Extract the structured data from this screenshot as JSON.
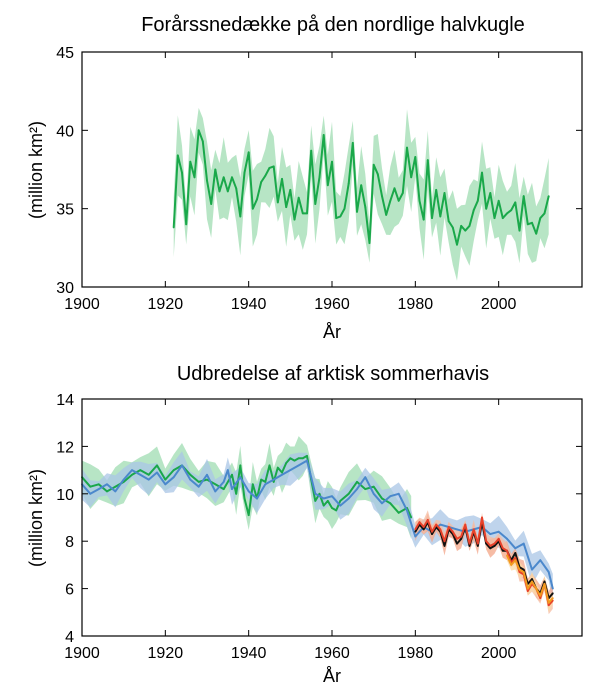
{
  "chart_data": [
    {
      "type": "line",
      "title": "Forårssnedække på den nordlige halvkugle",
      "xlabel": "År",
      "ylabel": "(million km²)",
      "xlim": [
        1900,
        2020
      ],
      "ylim": [
        30,
        45
      ],
      "xticks": [
        1900,
        1920,
        1940,
        1960,
        1980,
        2000
      ],
      "yticks": [
        30,
        35,
        40,
        45
      ],
      "grid": false,
      "series": [
        {
          "color": "#1aa84a",
          "band_color": "#9fdcb2",
          "x": [
            1922,
            1923,
            1924,
            1925,
            1926,
            1927,
            1928,
            1929,
            1930,
            1931,
            1932,
            1933,
            1934,
            1935,
            1936,
            1937,
            1938,
            1939,
            1940,
            1941,
            1942,
            1943,
            1944,
            1945,
            1946,
            1947,
            1948,
            1949,
            1950,
            1951,
            1952,
            1953,
            1954,
            1955,
            1956,
            1957,
            1958,
            1959,
            1960,
            1961,
            1962,
            1963,
            1964,
            1965,
            1966,
            1967,
            1968,
            1969,
            1970,
            1971,
            1972,
            1973,
            1974,
            1975,
            1976,
            1977,
            1978,
            1979,
            1980,
            1981,
            1982,
            1983,
            1984,
            1985,
            1986,
            1987,
            1988,
            1989,
            1990,
            1991,
            1992,
            1993,
            1994,
            1995,
            1996,
            1997,
            1998,
            1999,
            2000,
            2001,
            2002,
            2003,
            2004,
            2005,
            2006,
            2007,
            2008,
            2009,
            2010,
            2011,
            2012
          ],
          "y": [
            33.8,
            38.4,
            37.3,
            34.0,
            38.0,
            37.0,
            40.0,
            39.3,
            36.8,
            35.3,
            37.5,
            36.1,
            37.0,
            36.1,
            37.0,
            36.3,
            34.5,
            37.3,
            38.6,
            35.0,
            35.6,
            36.7,
            37.1,
            37.6,
            37.7,
            35.4,
            36.9,
            35.1,
            36.2,
            34.3,
            35.7,
            34.7,
            34.7,
            38.7,
            35.3,
            37.0,
            39.7,
            36.5,
            38.0,
            34.4,
            34.5,
            35.0,
            36.6,
            39.2,
            34.8,
            36.5,
            35.1,
            32.8,
            37.8,
            37.2,
            35.8,
            34.6,
            35.5,
            36.3,
            35.5,
            36.0,
            38.9,
            37.0,
            38.3,
            35.5,
            34.3,
            38.1,
            34.4,
            36.2,
            34.5,
            36.0,
            34.2,
            33.8,
            32.7,
            33.9,
            33.6,
            33.9,
            34.9,
            35.5,
            37.3,
            35.0,
            36.0,
            34.4,
            35.5,
            34.4,
            34.7,
            34.9,
            35.4,
            33.6,
            35.8,
            34.0,
            34.1,
            33.4,
            34.4,
            34.7,
            35.8
          ]
        }
      ]
    },
    {
      "type": "line",
      "title": "Udbredelse af arktisk sommerhavis",
      "xlabel": "År",
      "ylabel": "(million km²)",
      "xlim": [
        1900,
        2020
      ],
      "ylim": [
        4,
        14
      ],
      "xticks": [
        1900,
        1920,
        1940,
        1960,
        1980,
        2000
      ],
      "yticks": [
        4,
        6,
        8,
        10,
        12,
        14
      ],
      "grid": false,
      "series": [
        {
          "color": "#1aa84a",
          "band_color": "#9fdcb2",
          "x": [
            1900,
            1902,
            1904,
            1906,
            1908,
            1910,
            1912,
            1914,
            1916,
            1918,
            1920,
            1922,
            1924,
            1926,
            1928,
            1930,
            1932,
            1934,
            1936,
            1937,
            1938,
            1939,
            1940,
            1941,
            1942,
            1943,
            1944,
            1945,
            1946,
            1947,
            1948,
            1949,
            1950,
            1951,
            1952,
            1953,
            1954,
            1955,
            1956,
            1957,
            1958,
            1959,
            1960,
            1961,
            1962,
            1964,
            1966,
            1968,
            1970,
            1972,
            1974,
            1976,
            1978,
            1979
          ],
          "y": [
            10.7,
            10.3,
            10.4,
            10.1,
            10.3,
            10.5,
            10.8,
            11.0,
            10.8,
            11.2,
            10.6,
            11.0,
            11.2,
            10.8,
            10.5,
            10.6,
            10.4,
            10.2,
            10.8,
            10.0,
            11.2,
            9.8,
            9.1,
            10.4,
            9.8,
            10.6,
            10.5,
            11.2,
            10.5,
            11.1,
            10.9,
            11.3,
            11.5,
            11.4,
            11.5,
            11.5,
            11.6,
            10.6,
            9.7,
            10.0,
            9.5,
            9.7,
            9.4,
            9.3,
            9.7,
            10.0,
            10.5,
            10.2,
            10.3,
            9.8,
            9.6,
            9.2,
            9.4,
            9.0
          ]
        },
        {
          "color": "#4b88cc",
          "band_color": "#a9c6e6",
          "x": [
            1900,
            1902,
            1904,
            1906,
            1908,
            1910,
            1912,
            1914,
            1916,
            1918,
            1920,
            1922,
            1924,
            1926,
            1928,
            1930,
            1932,
            1934,
            1935,
            1936,
            1938,
            1940,
            1942,
            1944,
            1946,
            1948,
            1950,
            1952,
            1954,
            1955,
            1956,
            1958,
            1960,
            1962,
            1964,
            1966,
            1968,
            1970,
            1972,
            1974,
            1976,
            1978,
            1980,
            1982,
            1984,
            1986,
            1988,
            1990,
            1992,
            1994,
            1996,
            1998,
            2000,
            2002,
            2004,
            2006,
            2008,
            2010,
            2012,
            2013
          ],
          "y": [
            10.4,
            10.0,
            10.2,
            10.4,
            10.1,
            10.6,
            11.0,
            10.8,
            10.6,
            10.9,
            10.4,
            10.7,
            11.2,
            10.6,
            10.3,
            10.8,
            10.1,
            10.5,
            11.0,
            10.2,
            10.7,
            10.1,
            9.8,
            10.4,
            10.6,
            10.8,
            11.0,
            11.2,
            11.4,
            10.7,
            10.0,
            9.8,
            9.9,
            9.5,
            9.8,
            10.2,
            10.7,
            10.0,
            9.6,
            9.9,
            10.0,
            9.3,
            8.2,
            8.6,
            8.4,
            8.7,
            8.6,
            8.5,
            8.4,
            8.5,
            8.6,
            8.3,
            8.4,
            8.1,
            7.7,
            7.9,
            6.8,
            7.2,
            6.7,
            6.0
          ]
        },
        {
          "color": "#111111",
          "band_color": "#f3a58a",
          "x": [
            1980,
            1981,
            1982,
            1983,
            1984,
            1985,
            1986,
            1987,
            1988,
            1989,
            1990,
            1991,
            1992,
            1993,
            1994,
            1995,
            1996,
            1997,
            1998,
            1999,
            2000,
            2001,
            2002,
            2003,
            2004,
            2005,
            2006,
            2007,
            2008,
            2009,
            2010,
            2011,
            2012,
            2013
          ],
          "y": [
            8.4,
            8.7,
            8.5,
            8.8,
            8.3,
            8.6,
            8.4,
            7.8,
            8.5,
            8.3,
            7.9,
            8.1,
            8.6,
            7.8,
            8.4,
            7.8,
            8.8,
            7.9,
            7.7,
            7.8,
            8.0,
            7.6,
            7.6,
            7.2,
            7.5,
            6.9,
            6.8,
            6.2,
            6.4,
            6.0,
            5.8,
            6.3,
            5.6,
            5.8
          ]
        },
        {
          "color": "#e8412a",
          "band_color": "#f6bca2",
          "x": [
            1980,
            1981,
            1982,
            1983,
            1984,
            1985,
            1986,
            1987,
            1988,
            1989,
            1990,
            1991,
            1992,
            1993,
            1994,
            1995,
            1996,
            1997,
            1998,
            1999,
            2000,
            2001,
            2002,
            2003,
            2004,
            2005,
            2006,
            2007,
            2008,
            2009,
            2010,
            2011,
            2012,
            2013
          ],
          "y": [
            8.5,
            8.8,
            8.6,
            8.9,
            8.4,
            8.7,
            8.5,
            8.0,
            8.6,
            8.4,
            8.1,
            8.2,
            8.7,
            7.9,
            8.5,
            7.9,
            9.0,
            8.0,
            7.8,
            7.9,
            8.1,
            7.7,
            7.6,
            7.1,
            7.3,
            6.7,
            6.6,
            5.9,
            6.2,
            6.0,
            5.6,
            6.2,
            5.3,
            5.5
          ]
        },
        {
          "color": "#f29a1f",
          "band_color": "#fbd9a6",
          "x": [
            2002,
            2003,
            2004,
            2005,
            2006,
            2007,
            2008,
            2009,
            2010,
            2011,
            2012,
            2013
          ],
          "y": [
            7.4,
            7.0,
            7.2,
            6.8,
            6.7,
            6.0,
            6.3,
            6.0,
            5.7,
            6.2,
            5.4,
            5.6
          ]
        }
      ]
    }
  ]
}
